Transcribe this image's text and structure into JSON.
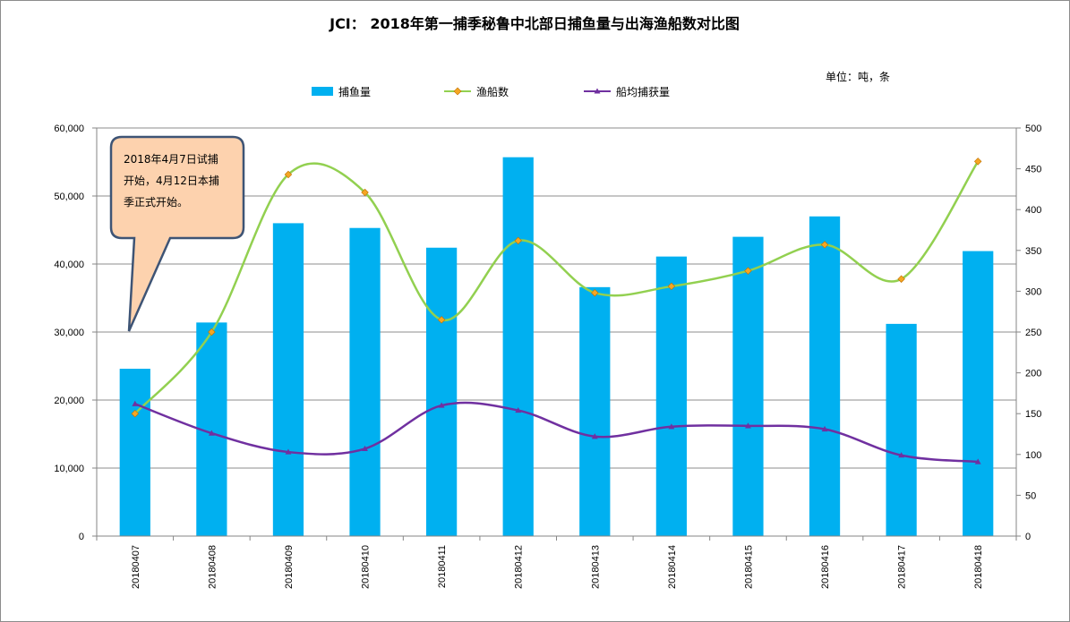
{
  "chart_data": {
    "type": "bar",
    "title": "JCI： 2018年第一捕季秘鲁中北部日捕鱼量与出海渔船数对比图",
    "unit_label": "单位：吨，条",
    "categories": [
      "20180407",
      "20180408",
      "20180409",
      "20180410",
      "20180411",
      "20180412",
      "20180413",
      "20180414",
      "20180415",
      "20180416",
      "20180417",
      "20180418"
    ],
    "series": [
      {
        "name": "捕鱼量",
        "kind": "bar",
        "axis": "left",
        "color": "#00B0F0",
        "values": [
          24600,
          31400,
          46000,
          45300,
          42400,
          55700,
          36600,
          41100,
          44000,
          47000,
          31200,
          41900
        ]
      },
      {
        "name": "渔船数",
        "kind": "line",
        "axis": "right",
        "color": "#92D050",
        "marker": "diamond",
        "marker_color": "#F5A623",
        "values": [
          150,
          250,
          443,
          421,
          265,
          362,
          298,
          306,
          325,
          357,
          315,
          459
        ]
      },
      {
        "name": "船均捕获量",
        "kind": "line",
        "axis": "right",
        "color": "#7030A0",
        "marker": "triangle",
        "values": [
          162,
          126,
          103,
          107,
          160,
          154,
          122,
          134,
          135,
          131,
          99,
          91
        ]
      }
    ],
    "y_left": {
      "min": 0,
      "max": 60000,
      "step": 10000,
      "tick_labels": [
        "0",
        "10,000",
        "20,000",
        "30,000",
        "40,000",
        "50,000",
        "60,000"
      ]
    },
    "y_right": {
      "min": 0,
      "max": 500,
      "step": 50,
      "tick_labels": [
        "0",
        "50",
        "100",
        "150",
        "200",
        "250",
        "300",
        "350",
        "400",
        "450",
        "500"
      ]
    },
    "grid": true,
    "legend_position": "top",
    "annotation": {
      "lines": [
        "2018年4月7日试捕",
        "开始，4月12日本捕",
        "季正式开始。"
      ]
    }
  }
}
